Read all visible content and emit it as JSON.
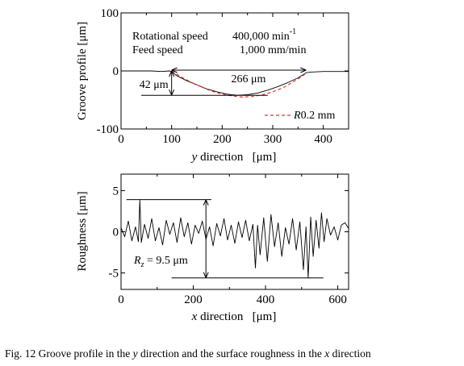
{
  "chart_data": [
    {
      "type": "line",
      "id": "groove-profile",
      "ylabel": "Groove profile  [μm]",
      "xlabel_var": "y",
      "xlabel_rest": " direction   [μm]",
      "xlim": [
        0,
        450
      ],
      "ylim": [
        -100,
        100
      ],
      "xticks": [
        0,
        100,
        200,
        300,
        400
      ],
      "yticks": [
        -100,
        0,
        100
      ],
      "xtick_labels": [
        "0",
        "100",
        "200",
        "300",
        "400"
      ],
      "ytick_labels": [
        "-100",
        "0",
        "100"
      ],
      "conditions": {
        "line1_label": "Rotational speed",
        "line1_value": "400,000 min",
        "line1_sup": "-1",
        "line2_label": "Feed speed",
        "line2_value": "1,000 mm/min"
      },
      "width_annotation": "266 μm",
      "depth_annotation": "42 μm",
      "series": [
        {
          "name": "",
          "style": "solid",
          "color": "#000000",
          "x": [
            0,
            20,
            40,
            60,
            80,
            95,
            100,
            110,
            130,
            150,
            170,
            190,
            210,
            230,
            250,
            270,
            290,
            310,
            330,
            350,
            366,
            375,
            400,
            425,
            450
          ],
          "y": [
            0,
            0,
            0,
            0,
            -1,
            0,
            -1,
            -8,
            -17,
            -24,
            -31,
            -36,
            -40,
            -42,
            -41,
            -38,
            -33,
            -27,
            -20,
            -12,
            -3,
            -2,
            -1,
            -1,
            -1
          ]
        },
        {
          "name": "R0.2 mm",
          "style": "dashed",
          "color": "#e8332b",
          "x": [
            100,
            120,
            140,
            160,
            180,
            200,
            220,
            240,
            260,
            280,
            300,
            320,
            340,
            360,
            366
          ],
          "y": [
            0,
            -11,
            -20,
            -28,
            -35,
            -40,
            -43,
            -45,
            -44,
            -41,
            -36,
            -29,
            -19,
            -8,
            -3
          ]
        }
      ]
    },
    {
      "type": "line",
      "id": "roughness",
      "ylabel": "Roughness  [μm]",
      "xlabel_var": "x",
      "xlabel_rest": " direction   [μm]",
      "xlim": [
        0,
        630
      ],
      "ylim": [
        -7,
        7
      ],
      "xticks": [
        0,
        200,
        400,
        600
      ],
      "yticks": [
        -5,
        0,
        5
      ],
      "xtick_labels": [
        "0",
        "200",
        "400",
        "600"
      ],
      "ytick_labels": [
        "-5",
        "0",
        "5"
      ],
      "rz_var": "R",
      "rz_sub": "z",
      "rz_value": " = 9.5 μm",
      "upper_ref": 3.9,
      "lower_ref": -5.6,
      "series": [
        {
          "name": "",
          "style": "solid",
          "color": "#000000",
          "x": [
            0,
            10,
            20,
            30,
            40,
            48,
            52,
            56,
            65,
            75,
            85,
            95,
            105,
            115,
            125,
            135,
            145,
            155,
            165,
            175,
            185,
            195,
            205,
            215,
            225,
            235,
            245,
            255,
            265,
            275,
            285,
            295,
            305,
            315,
            325,
            335,
            345,
            355,
            365,
            372,
            378,
            385,
            395,
            405,
            415,
            425,
            435,
            445,
            455,
            465,
            475,
            485,
            495,
            505,
            512,
            518,
            525,
            532,
            540,
            548,
            555,
            562,
            570,
            580,
            590,
            600,
            610,
            620,
            630
          ],
          "y": [
            0.5,
            -0.6,
            1.3,
            -1.1,
            0.6,
            -1.2,
            3.9,
            -1.3,
            0.9,
            -0.8,
            1.6,
            -1.1,
            0.5,
            -1.6,
            1.4,
            -0.3,
            1.1,
            -1.3,
            1.7,
            -0.6,
            1.1,
            -1.5,
            0.8,
            -0.2,
            1.3,
            -0.9,
            0.6,
            -1.7,
            1.0,
            -0.5,
            1.6,
            -1.0,
            0.8,
            -1.4,
            1.2,
            -0.7,
            1.4,
            -1.1,
            0.9,
            -4.4,
            0.8,
            -2.8,
            1.7,
            -3.6,
            2.1,
            -1.8,
            1.1,
            -3.0,
            0.5,
            -1.5,
            1.6,
            -2.2,
            1.2,
            -4.6,
            0.6,
            -5.6,
            1.8,
            -3.0,
            1.4,
            -2.0,
            2.3,
            -1.2,
            1.6,
            -0.4,
            0.6,
            -1.0,
            0.8,
            1.1,
            0.4
          ]
        }
      ]
    }
  ],
  "caption": {
    "part1": "Fig. 12 Groove profile in the ",
    "var1": "y",
    "part2": " direction and the surface roughness in the ",
    "var2": "x",
    "part3": " direction"
  }
}
